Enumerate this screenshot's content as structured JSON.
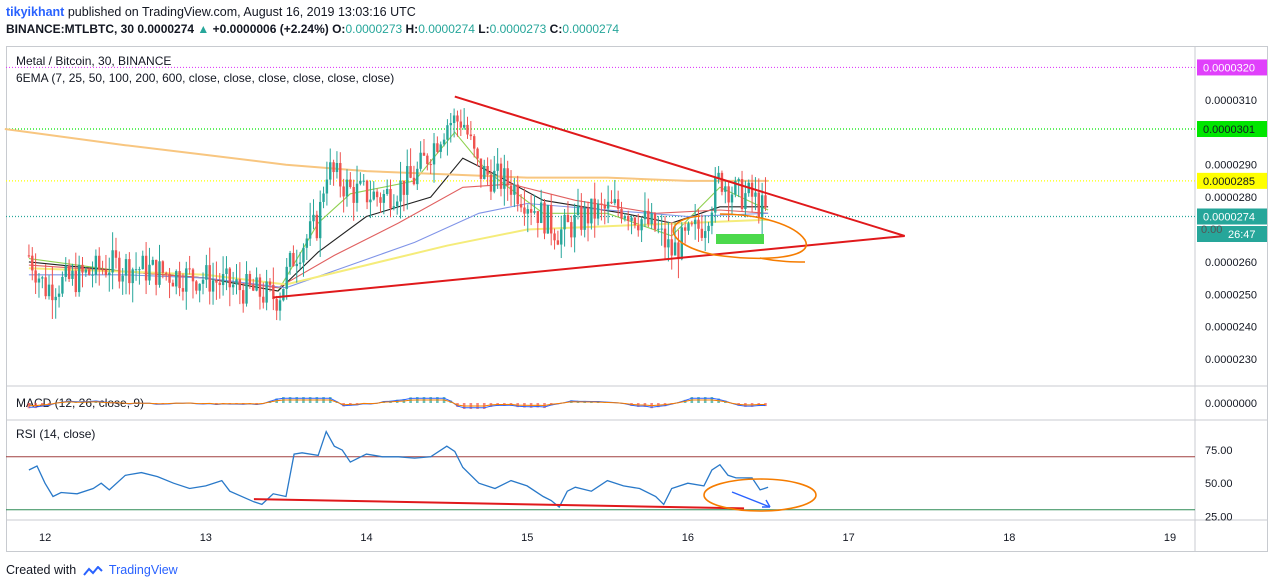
{
  "header": {
    "username": "tikyikhant",
    "published_text": "published on TradingView.com, August 16, 2019 13:03:16 UTC",
    "symbol": "BINANCE:MTLBTC, 30",
    "price": "0.0000274",
    "change_arrow": "▲",
    "change": "+0.0000006 (+2.24%)",
    "o_label": "O:",
    "o_value": "0.0000273",
    "h_label": "H:",
    "h_value": "0.0000274",
    "l_label": "L:",
    "l_value": "0.0000273",
    "c_label": "C:",
    "c_value": "0.0000274"
  },
  "footer": {
    "created_with": "Created with",
    "brand": "TradingView",
    "logo_icon": "tradingview-logo-icon"
  },
  "colors": {
    "up": "#26a69a",
    "down": "#ef5350",
    "trend": "#e0191b",
    "marker": "#f57c00",
    "green_box": "#4cd94c",
    "ema7": "#8fd14f",
    "ema25": "#222222",
    "ema50": "#e06060",
    "ema100": "#8094e8",
    "ema200": "#f5ec7a",
    "ema600": "#f8c680",
    "label_pink": "#e040fb",
    "label_green": "#00e600",
    "label_yellow": "#ffff00",
    "label_teal": "#26a69a"
  },
  "chart_data": [
    {
      "type": "candlestick",
      "title": "Metal / Bitcoin, 30, BINANCE",
      "indicator": "6EMA (7, 25, 50, 100, 200, 600, close, close, close, close, close, close)",
      "x_ticks": [
        "12",
        "13",
        "14",
        "15",
        "16",
        "17",
        "18",
        "19"
      ],
      "y_ticks": [
        "0.0000310",
        "0.0000290",
        "0.0000280",
        "0.0000260",
        "0.0000250",
        "0.0000240",
        "0.0000230"
      ],
      "ylim": [
        2.22e-05,
        3.26e-05
      ],
      "price_labels": [
        {
          "value": "0.0000320",
          "price": 3.2e-05,
          "color": "label_pink"
        },
        {
          "value": "0.0000301",
          "price": 3.01e-05,
          "color": "label_green"
        },
        {
          "value": "0.0000285",
          "price": 2.85e-05,
          "color": "label_yellow"
        },
        {
          "value": "0.0000274",
          "price": 2.74e-05,
          "color": "label_teal"
        }
      ],
      "countdown": "26:47",
      "partial_tick": "0.00",
      "close_series": [
        {
          "x": 11.9,
          "y": 2.62e-05
        },
        {
          "x": 12.0,
          "y": 2.52e-05
        },
        {
          "x": 12.2,
          "y": 2.55e-05
        },
        {
          "x": 12.4,
          "y": 2.59e-05
        },
        {
          "x": 12.6,
          "y": 2.58e-05
        },
        {
          "x": 12.8,
          "y": 2.56e-05
        },
        {
          "x": 13.0,
          "y": 2.55e-05
        },
        {
          "x": 13.2,
          "y": 2.52e-05
        },
        {
          "x": 13.45,
          "y": 2.49e-05
        },
        {
          "x": 13.55,
          "y": 2.62e-05
        },
        {
          "x": 13.7,
          "y": 2.72e-05
        },
        {
          "x": 13.75,
          "y": 2.89e-05
        },
        {
          "x": 13.9,
          "y": 2.82e-05
        },
        {
          "x": 14.1,
          "y": 2.8e-05
        },
        {
          "x": 14.3,
          "y": 2.86e-05
        },
        {
          "x": 14.5,
          "y": 3.03e-05
        },
        {
          "x": 14.6,
          "y": 3.04e-05
        },
        {
          "x": 14.7,
          "y": 2.88e-05
        },
        {
          "x": 14.9,
          "y": 2.84e-05
        },
        {
          "x": 15.1,
          "y": 2.74e-05
        },
        {
          "x": 15.2,
          "y": 2.69e-05
        },
        {
          "x": 15.4,
          "y": 2.75e-05
        },
        {
          "x": 15.6,
          "y": 2.77e-05
        },
        {
          "x": 15.8,
          "y": 2.7e-05
        },
        {
          "x": 15.9,
          "y": 2.63e-05
        },
        {
          "x": 16.1,
          "y": 2.72e-05
        },
        {
          "x": 16.2,
          "y": 2.86e-05
        },
        {
          "x": 16.3,
          "y": 2.81e-05
        },
        {
          "x": 16.4,
          "y": 2.8e-05
        },
        {
          "x": 16.5,
          "y": 2.74e-05
        }
      ],
      "ema_lines": [
        {
          "name": "EMA 7",
          "color": "ema7",
          "points": [
            [
              11.9,
              2.61e-05
            ],
            [
              12.5,
              2.57e-05
            ],
            [
              13.0,
              2.55e-05
            ],
            [
              13.45,
              2.51e-05
            ],
            [
              13.7,
              2.72e-05
            ],
            [
              13.9,
              2.81e-05
            ],
            [
              14.3,
              2.85e-05
            ],
            [
              14.55,
              3e-05
            ],
            [
              14.75,
              2.88e-05
            ],
            [
              15.1,
              2.75e-05
            ],
            [
              15.5,
              2.75e-05
            ],
            [
              15.9,
              2.68e-05
            ],
            [
              16.2,
              2.83e-05
            ],
            [
              16.5,
              2.76e-05
            ]
          ]
        },
        {
          "name": "EMA 25",
          "color": "ema25",
          "points": [
            [
              11.9,
              2.6e-05
            ],
            [
              12.5,
              2.57e-05
            ],
            [
              13.0,
              2.55e-05
            ],
            [
              13.45,
              2.51e-05
            ],
            [
              13.7,
              2.63e-05
            ],
            [
              14.0,
              2.74e-05
            ],
            [
              14.4,
              2.8e-05
            ],
            [
              14.6,
              2.92e-05
            ],
            [
              14.8,
              2.87e-05
            ],
            [
              15.1,
              2.79e-05
            ],
            [
              15.6,
              2.75e-05
            ],
            [
              15.9,
              2.72e-05
            ],
            [
              16.2,
              2.77e-05
            ],
            [
              16.5,
              2.77e-05
            ]
          ]
        },
        {
          "name": "EMA 50",
          "color": "ema50",
          "points": [
            [
              11.9,
              2.59e-05
            ],
            [
              12.5,
              2.57e-05
            ],
            [
              13.0,
              2.55e-05
            ],
            [
              13.45,
              2.52e-05
            ],
            [
              13.8,
              2.62e-05
            ],
            [
              14.2,
              2.72e-05
            ],
            [
              14.6,
              2.83e-05
            ],
            [
              14.9,
              2.84e-05
            ],
            [
              15.3,
              2.79e-05
            ],
            [
              15.8,
              2.75e-05
            ],
            [
              16.2,
              2.76e-05
            ],
            [
              16.5,
              2.75e-05
            ]
          ]
        },
        {
          "name": "EMA 100",
          "color": "ema100",
          "points": [
            [
              11.9,
              2.56e-05
            ],
            [
              12.5,
              2.56e-05
            ],
            [
              13.0,
              2.55e-05
            ],
            [
              13.5,
              2.52e-05
            ],
            [
              13.9,
              2.59e-05
            ],
            [
              14.3,
              2.66e-05
            ],
            [
              14.7,
              2.75e-05
            ],
            [
              15.0,
              2.78e-05
            ],
            [
              15.5,
              2.76e-05
            ],
            [
              16.0,
              2.74e-05
            ],
            [
              16.5,
              2.75e-05
            ]
          ]
        },
        {
          "name": "EMA 200",
          "color": "ema200",
          "points": [
            [
              11.9,
              2.58e-05
            ],
            [
              12.5,
              2.57e-05
            ],
            [
              13.0,
              2.56e-05
            ],
            [
              13.5,
              2.53e-05
            ],
            [
              14.0,
              2.59e-05
            ],
            [
              14.5,
              2.65e-05
            ],
            [
              15.0,
              2.7e-05
            ],
            [
              15.5,
              2.71e-05
            ],
            [
              16.0,
              2.72e-05
            ],
            [
              16.5,
              2.73e-05
            ]
          ]
        },
        {
          "name": "EMA 600",
          "color": "ema600",
          "points": [
            [
              11.75,
              3.01e-05
            ],
            [
              12.5,
              2.96e-05
            ],
            [
              13.0,
              2.93e-05
            ],
            [
              13.5,
              2.9e-05
            ],
            [
              14.0,
              2.88e-05
            ],
            [
              14.5,
              2.87e-05
            ],
            [
              15.0,
              2.86e-05
            ],
            [
              15.5,
              2.86e-05
            ],
            [
              16.0,
              2.85e-05
            ],
            [
              16.5,
              2.85e-05
            ]
          ]
        }
      ],
      "trendlines": [
        {
          "points": [
            [
              13.42,
              2.49e-05
            ],
            [
              17.35,
              2.68e-05
            ]
          ]
        },
        {
          "points": [
            [
              14.55,
              3.11e-05
            ],
            [
              17.35,
              2.68e-05
            ]
          ]
        }
      ],
      "horizontal_lines": [
        {
          "price": 3.2e-05,
          "color": "label_pink"
        },
        {
          "price": 3.01e-05,
          "color": "label_green"
        },
        {
          "price": 2.85e-05,
          "color": "label_yellow"
        },
        {
          "price": 2.74e-05,
          "color": "label_teal"
        }
      ]
    },
    {
      "type": "histogram",
      "title": "MACD (12, 26, close, 9)",
      "y_ticks": [
        "0.0000000"
      ]
    },
    {
      "type": "line",
      "title": "RSI (14, close)",
      "y_ticks": [
        "75.00",
        "50.00",
        "25.00"
      ],
      "ylim": [
        23,
        97
      ],
      "levels": [
        70,
        30
      ],
      "series": [
        {
          "points": [
            [
              11.9,
              60
            ],
            [
              11.95,
              63
            ],
            [
              12.0,
              50
            ],
            [
              12.05,
              40
            ],
            [
              12.1,
              43
            ],
            [
              12.2,
              42
            ],
            [
              12.3,
              46
            ],
            [
              12.35,
              50
            ],
            [
              12.4,
              45
            ],
            [
              12.5,
              56
            ],
            [
              12.6,
              58
            ],
            [
              12.7,
              55
            ],
            [
              12.8,
              50
            ],
            [
              12.9,
              46
            ],
            [
              13.0,
              48
            ],
            [
              13.1,
              52
            ],
            [
              13.15,
              44
            ],
            [
              13.3,
              36
            ],
            [
              13.35,
              34
            ],
            [
              13.42,
              42
            ],
            [
              13.5,
              40
            ],
            [
              13.55,
              72
            ],
            [
              13.6,
              73
            ],
            [
              13.7,
              71
            ],
            [
              13.75,
              89
            ],
            [
              13.8,
              78
            ],
            [
              13.85,
              75
            ],
            [
              13.9,
              66
            ],
            [
              14.0,
              72
            ],
            [
              14.1,
              70
            ],
            [
              14.2,
              70
            ],
            [
              14.3,
              69
            ],
            [
              14.4,
              70
            ],
            [
              14.5,
              78
            ],
            [
              14.55,
              74
            ],
            [
              14.6,
              62
            ],
            [
              14.7,
              50
            ],
            [
              14.8,
              46
            ],
            [
              14.9,
              52
            ],
            [
              15.0,
              48
            ],
            [
              15.1,
              40
            ],
            [
              15.15,
              37
            ],
            [
              15.2,
              32
            ],
            [
              15.25,
              44
            ],
            [
              15.3,
              47
            ],
            [
              15.4,
              44
            ],
            [
              15.5,
              52
            ],
            [
              15.6,
              48
            ],
            [
              15.7,
              46
            ],
            [
              15.8,
              40
            ],
            [
              15.85,
              34
            ],
            [
              15.9,
              46
            ],
            [
              16.0,
              50
            ],
            [
              16.1,
              48
            ],
            [
              16.15,
              60
            ],
            [
              16.2,
              64
            ],
            [
              16.25,
              56
            ],
            [
              16.3,
              54
            ],
            [
              16.4,
              54
            ],
            [
              16.45,
              45
            ],
            [
              16.5,
              47
            ]
          ]
        }
      ],
      "trendlines": [
        {
          "points": [
            [
              13.3,
              38
            ],
            [
              16.35,
              31
            ]
          ]
        }
      ]
    }
  ]
}
